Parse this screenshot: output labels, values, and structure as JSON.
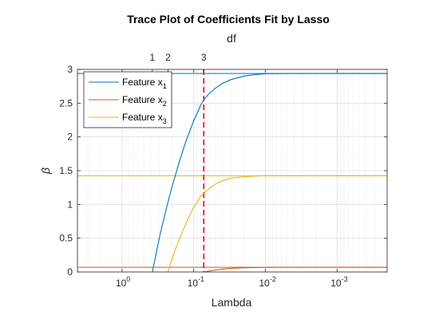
{
  "chart_data": {
    "type": "line",
    "title": "Trace Plot of Coefficients Fit by Lasso",
    "top_axis_label": "df",
    "top_ticks": [
      {
        "lambda": 0.378,
        "label": "1"
      },
      {
        "lambda": 0.229,
        "label": "2"
      },
      {
        "lambda": 0.0725,
        "label": "3"
      }
    ],
    "xlabel": "Lambda",
    "ylabel": "β",
    "x_scale": "log",
    "x_reversed": true,
    "xlim": [
      0.0002,
      4.2
    ],
    "ylim": [
      0,
      3
    ],
    "x_ticks": [
      {
        "value": 1,
        "base": "10",
        "exp": "0"
      },
      {
        "value": 0.1,
        "base": "10",
        "exp": "-1"
      },
      {
        "value": 0.01,
        "base": "10",
        "exp": "-2"
      },
      {
        "value": 0.001,
        "base": "10",
        "exp": "-3"
      }
    ],
    "y_ticks": [
      {
        "value": 0,
        "label": "0"
      },
      {
        "value": 0.5,
        "label": "0.5"
      },
      {
        "value": 1,
        "label": "1"
      },
      {
        "value": 1.5,
        "label": "1.5"
      },
      {
        "value": 2,
        "label": "2"
      },
      {
        "value": 2.5,
        "label": "2.5"
      },
      {
        "value": 3,
        "label": "3"
      }
    ],
    "grid": true,
    "legend_position": "top-left",
    "series": [
      {
        "name": "Feature x",
        "sub": "1",
        "color": "#0072BD",
        "lambda": [
          0.378,
          0.3,
          0.24,
          0.2,
          0.16,
          0.13,
          0.1,
          0.08,
          0.0725,
          0.06,
          0.05,
          0.04,
          0.03,
          0.02,
          0.015,
          0.01,
          0.005,
          0.002,
          0.0002
        ],
        "beta": [
          0.0,
          0.52,
          0.95,
          1.27,
          1.62,
          1.92,
          2.24,
          2.47,
          2.55,
          2.65,
          2.72,
          2.79,
          2.85,
          2.9,
          2.92,
          2.935,
          2.94,
          2.94,
          2.94
        ]
      },
      {
        "name": "Feature x",
        "sub": "2",
        "color": "#D95319",
        "lambda": [
          0.0725,
          0.05,
          0.03,
          0.02,
          0.01,
          0.005,
          0.0002
        ],
        "beta": [
          0.0,
          0.03,
          0.055,
          0.063,
          0.068,
          0.07,
          0.07
        ]
      },
      {
        "name": "Feature x",
        "sub": "3",
        "color": "#EDB120",
        "lambda": [
          0.229,
          0.2,
          0.16,
          0.12,
          0.1,
          0.08,
          0.06,
          0.05,
          0.04,
          0.03,
          0.02,
          0.015,
          0.01,
          0.005,
          0.002,
          0.0002
        ],
        "beta": [
          0.0,
          0.2,
          0.48,
          0.79,
          0.96,
          1.12,
          1.24,
          1.3,
          1.35,
          1.39,
          1.41,
          1.42,
          1.425,
          1.425,
          1.425,
          1.425
        ]
      }
    ],
    "reference_lines": [
      {
        "type": "horizontal",
        "y": 2.94,
        "color": "#0072BD"
      },
      {
        "type": "horizontal",
        "y": 0.07,
        "color": "#D95319"
      },
      {
        "type": "horizontal",
        "y": 1.425,
        "color": "#EDB120"
      },
      {
        "type": "vertical",
        "x": 0.0725,
        "color": "#FF0000",
        "style": "dashed"
      }
    ]
  }
}
